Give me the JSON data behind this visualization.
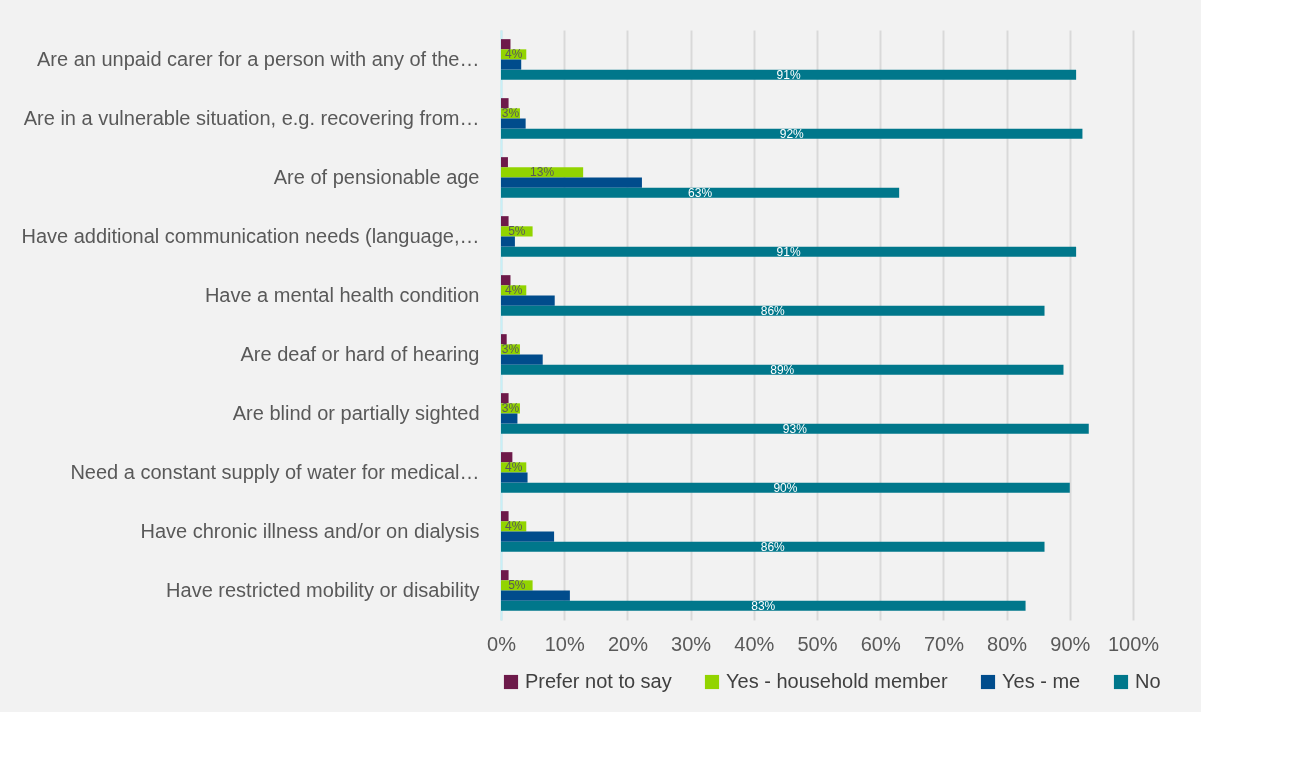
{
  "chart_data": {
    "type": "bar",
    "orientation": "horizontal",
    "categories": [
      "Are an unpaid carer for a person with any of the…",
      "Are in a vulnerable situation, e.g. recovering from…",
      "Are of pensionable age",
      "Have additional communication needs (language,…",
      "Have a mental health condition",
      "Are deaf or hard of hearing",
      "Are blind or partially sighted",
      "Need a constant supply of water for medical…",
      "Have chronic illness and/or on dialysis",
      "Have restricted mobility or disability"
    ],
    "series": [
      {
        "name": "Prefer not to say",
        "color": "#6d1a4a",
        "values": [
          1.5,
          1.2,
          1.1,
          1.2,
          1.5,
          0.9,
          1.2,
          1.8,
          1.2,
          1.2
        ]
      },
      {
        "name": "Yes - household member",
        "color": "#92d400",
        "values": [
          4,
          3,
          13,
          5,
          4,
          3,
          3,
          4,
          4,
          5
        ],
        "value_labels": [
          "4%",
          "3%",
          "13%",
          "5%",
          "4%",
          "3%",
          "3%",
          "4%",
          "4%",
          "5%"
        ]
      },
      {
        "name": "Yes - me",
        "color": "#004c8c",
        "values": [
          3.2,
          3.9,
          22.3,
          2.2,
          8.5,
          6.6,
          2.6,
          4.2,
          8.4,
          10.9
        ]
      },
      {
        "name": "No",
        "color": "#00778b",
        "values": [
          91,
          92,
          63,
          91,
          86,
          89,
          93,
          90,
          86,
          83
        ],
        "value_labels": [
          "91%",
          "92%",
          "63%",
          "91%",
          "86%",
          "89%",
          "93%",
          "90%",
          "86%",
          "83%"
        ]
      }
    ],
    "xlim": [
      0,
      100
    ],
    "xticks": [
      {
        "value": 0,
        "label": "0%"
      },
      {
        "value": 10,
        "label": "10%"
      },
      {
        "value": 20,
        "label": "20%"
      },
      {
        "value": 30,
        "label": "30%"
      },
      {
        "value": 40,
        "label": "40%"
      },
      {
        "value": 50,
        "label": "50%"
      },
      {
        "value": 60,
        "label": "60%"
      },
      {
        "value": 70,
        "label": "70%"
      },
      {
        "value": 80,
        "label": "80%"
      },
      {
        "value": 90,
        "label": "90%"
      },
      {
        "value": 100,
        "label": "100%"
      }
    ],
    "grid": "x",
    "legend": "bottom"
  }
}
